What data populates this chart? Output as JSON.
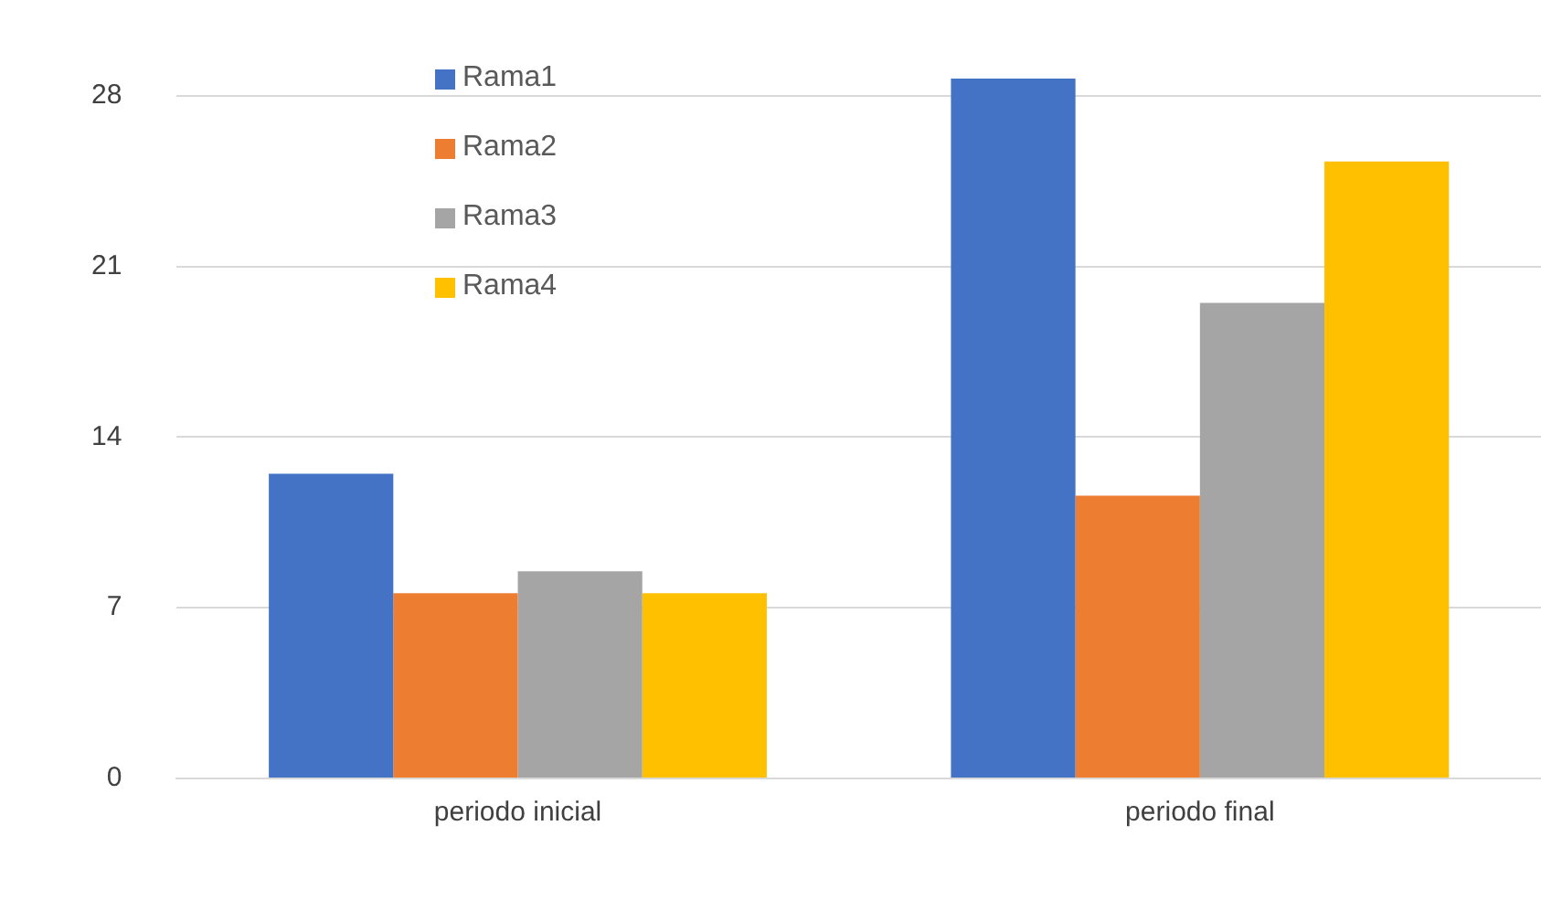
{
  "chart_data": {
    "type": "bar",
    "categories": [
      "periodo inicial",
      "periodo final"
    ],
    "series": [
      {
        "name": "Rama1",
        "color": "#4472c4",
        "values": [
          12.5,
          28.7
        ]
      },
      {
        "name": "Rama2",
        "color": "#ed7d31",
        "values": [
          7.6,
          11.6
        ]
      },
      {
        "name": "Rama3",
        "color": "#a5a5a5",
        "values": [
          8.5,
          19.5
        ]
      },
      {
        "name": "Rama4",
        "color": "#ffc000",
        "values": [
          7.6,
          25.3
        ]
      }
    ],
    "ylim": [
      0,
      29
    ],
    "yticks": [
      0,
      7,
      14,
      21,
      28
    ],
    "grid": "y",
    "legend": "top left"
  }
}
